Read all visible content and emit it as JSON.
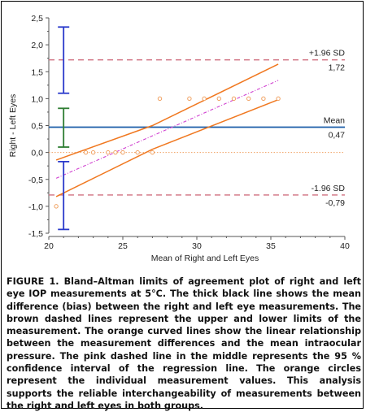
{
  "chart_data": {
    "type": "scatter",
    "xlabel": "Mean of Right and Left Eyes",
    "ylabel": "Right - Left Eyes",
    "xlim": [
      20,
      40
    ],
    "ylim": [
      -1.5,
      2.5
    ],
    "x_ticks": [
      "20",
      "25",
      "30",
      "35",
      "40"
    ],
    "y_ticks": [
      "-1,5",
      "-1,0",
      "-0,5",
      "0,0",
      "0,5",
      "1,0",
      "1,5",
      "2,0",
      "2,5"
    ],
    "points": [
      {
        "x": 20.5,
        "y": -1.0
      },
      {
        "x": 22.5,
        "y": 0.0
      },
      {
        "x": 23.0,
        "y": 0.0
      },
      {
        "x": 24.0,
        "y": 0.0
      },
      {
        "x": 24.5,
        "y": 0.0
      },
      {
        "x": 25.0,
        "y": 0.0
      },
      {
        "x": 26.0,
        "y": 0.0
      },
      {
        "x": 27.0,
        "y": 0.0
      },
      {
        "x": 27.5,
        "y": 1.0
      },
      {
        "x": 29.5,
        "y": 1.0
      },
      {
        "x": 30.5,
        "y": 1.0
      },
      {
        "x": 31.5,
        "y": 1.0
      },
      {
        "x": 32.5,
        "y": 1.0
      },
      {
        "x": 33.5,
        "y": 1.0
      },
      {
        "x": 34.5,
        "y": 1.0
      },
      {
        "x": 35.5,
        "y": 1.0
      }
    ],
    "mean": {
      "label": "Mean",
      "value_label": "0,47",
      "y": 0.47,
      "x_range": [
        20,
        40
      ]
    },
    "upper_loa": {
      "label": "+1.96 SD",
      "value_label": "1,72",
      "y": 1.72,
      "x_range": [
        20,
        40
      ]
    },
    "lower_loa": {
      "label": "-1.96 SD",
      "value_label": "-0,79",
      "y": -0.79,
      "x_range": [
        20,
        40
      ]
    },
    "zero_line": {
      "y": 0.0,
      "x_range": [
        20,
        40
      ]
    },
    "regression_line": {
      "x": [
        20.5,
        35.5
      ],
      "y": [
        -0.48,
        1.34
      ]
    },
    "regression_ci_upper": {
      "x": [
        20.5,
        27,
        35.5
      ],
      "y": [
        -0.14,
        0.5,
        1.64
      ]
    },
    "regression_ci_lower": {
      "x": [
        20.5,
        27,
        35.5
      ],
      "y": [
        -0.82,
        0.06,
        0.98
      ]
    },
    "error_bars": [
      {
        "x": 21.0,
        "center": 1.72,
        "low": 1.1,
        "high": 2.33,
        "color": "#2a3acb"
      },
      {
        "x": 21.0,
        "center": 0.47,
        "low": 0.1,
        "high": 0.82,
        "color": "#2e7d32"
      },
      {
        "x": 21.0,
        "center": -0.79,
        "low": -1.43,
        "high": -0.17,
        "color": "#2a3acb"
      }
    ],
    "colors": {
      "points": "#f0a060",
      "ci_lines": "#f07820",
      "regression": "#d040d0",
      "mean_line": "#1a5ca8",
      "loa_lines": "#d07080",
      "zero_line": "#f0a060",
      "axis": "#555555"
    }
  },
  "caption": {
    "lead": "FIGURE 1.",
    "text": "Bland–Altman limits of agreement plot of right and left eye IOP measurements at 5°C. The thick black line shows the mean difference (bias) between the right and left eye measurements. The brown dashed lines represent the upper and lower limits of the measurement. The orange curved lines show the linear relationship between the measurement differences and the mean intraocular pressure. The pink dashed line in the middle represents the 95 % confidence interval of the regression line. The orange circles represent the individual measurement values. This analysis supports the reliable interchangeability of measurements between the right and left eyes in both groups."
  }
}
